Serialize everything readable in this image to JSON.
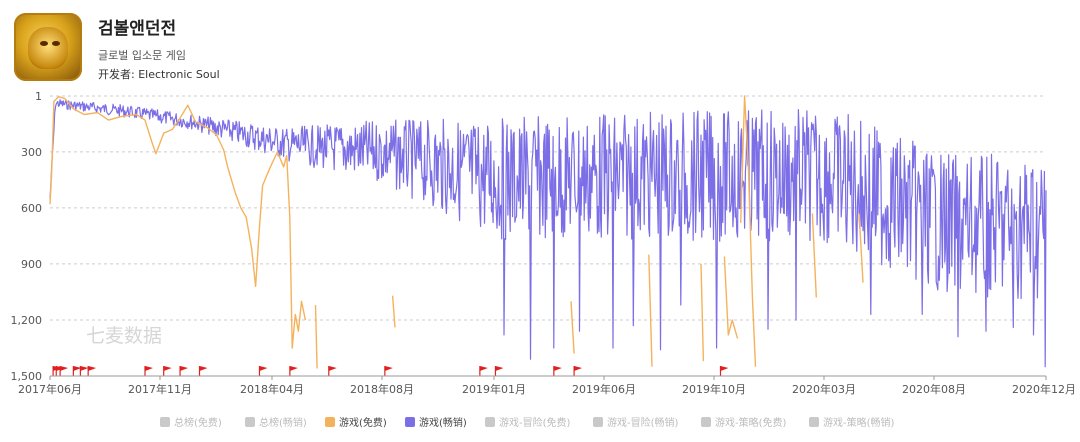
{
  "app": {
    "title": "검볼앤던전",
    "category": "글로벌 입소문 게임",
    "developer": "开发者: Electronic Soul",
    "icon": "dungeon-game-gold-icon"
  },
  "watermark": "七麦数据",
  "colors": {
    "free": "#f5b25c",
    "grossing": "#7b6ee6",
    "inactive": "#c9c9c9",
    "grid": "#cccccc",
    "axis_text": "#555555",
    "flag": "#e02020"
  },
  "legend": [
    {
      "label": "总榜(免费)",
      "active": false
    },
    {
      "label": "总榜(畅销)",
      "active": false
    },
    {
      "label": "游戏(免费)",
      "active": true,
      "color": "#f5b25c"
    },
    {
      "label": "游戏(畅销)",
      "active": true,
      "color": "#7b6ee6"
    },
    {
      "label": "游戏-冒险(免费)",
      "active": false
    },
    {
      "label": "游戏-冒险(畅销)",
      "active": false
    },
    {
      "label": "游戏-策略(免费)",
      "active": false
    },
    {
      "label": "游戏-策略(畅销)",
      "active": false
    }
  ],
  "chart_data": {
    "type": "line",
    "y_inverted": true,
    "ylim": [
      1,
      1500
    ],
    "y_ticks": [
      "1",
      "300",
      "600",
      "900",
      "1,200",
      "1,500"
    ],
    "y_tick_values": [
      1,
      300,
      600,
      900,
      1200,
      1500
    ],
    "x_ticks": [
      "2017年06月",
      "2017年11月",
      "2018年04月",
      "2018年08月",
      "2019年01月",
      "2019年06月",
      "2019年10月",
      "2020年03月",
      "2020年08月",
      "2020年12月"
    ],
    "x_range": [
      "2017-06-01",
      "2020-12-01"
    ],
    "grid": "horizontal-dashed",
    "legend_position": "bottom",
    "series": [
      {
        "name": "游戏(免费)",
        "color": "#f5b25c",
        "segments": [
          [
            [
              "2017-06-01",
              580
            ],
            [
              "2017-06-03",
              420
            ],
            [
              "2017-06-06",
              30
            ],
            [
              "2017-06-12",
              5
            ],
            [
              "2017-06-20",
              15
            ],
            [
              "2017-07-01",
              70
            ],
            [
              "2017-07-15",
              100
            ],
            [
              "2017-08-01",
              90
            ],
            [
              "2017-08-15",
              130
            ],
            [
              "2017-09-01",
              110
            ],
            [
              "2017-09-20",
              100
            ],
            [
              "2017-10-01",
              130
            ],
            [
              "2017-10-10",
              250
            ],
            [
              "2017-10-15",
              310
            ],
            [
              "2017-10-25",
              200
            ],
            [
              "2017-11-05",
              180
            ],
            [
              "2017-11-15",
              120
            ],
            [
              "2017-11-25",
              50
            ],
            [
              "2017-12-05",
              140
            ],
            [
              "2017-12-20",
              170
            ],
            [
              "2018-01-01",
              210
            ],
            [
              "2018-01-10",
              290
            ],
            [
              "2018-01-15",
              380
            ],
            [
              "2018-01-25",
              520
            ],
            [
              "2018-02-01",
              600
            ],
            [
              "2018-02-08",
              650
            ],
            [
              "2018-02-15",
              820
            ],
            [
              "2018-02-20",
              1020
            ],
            [
              "2018-02-25",
              700
            ],
            [
              "2018-03-01",
              480
            ],
            [
              "2018-03-10",
              390
            ],
            [
              "2018-03-20",
              300
            ],
            [
              "2018-03-28",
              380
            ],
            [
              "2018-04-01",
              320
            ],
            [
              "2018-04-05",
              650
            ],
            [
              "2018-04-08",
              1350
            ],
            [
              "2018-04-12",
              1170
            ],
            [
              "2018-04-16",
              1260
            ],
            [
              "2018-04-20",
              1100
            ],
            [
              "2018-04-25",
              1200
            ]
          ],
          [
            [
              "2018-05-08",
              1120
            ],
            [
              "2018-05-10",
              1460
            ]
          ],
          [
            [
              "2018-08-15",
              1070
            ],
            [
              "2018-08-18",
              1240
            ]
          ],
          [
            [
              "2019-04-01",
              1100
            ],
            [
              "2019-04-05",
              1380
            ]
          ],
          [
            [
              "2019-07-10",
              850
            ],
            [
              "2019-07-14",
              1450
            ]
          ],
          [
            [
              "2019-09-15",
              900
            ],
            [
              "2019-09-18",
              1420
            ]
          ],
          [
            [
              "2019-10-15",
              860
            ],
            [
              "2019-10-20",
              1280
            ],
            [
              "2019-10-25",
              1200
            ],
            [
              "2019-11-01",
              1300
            ]
          ],
          [
            [
              "2019-11-05",
              680
            ],
            [
              "2019-11-10",
              1
            ],
            [
              "2019-11-15",
              400
            ],
            [
              "2019-11-20",
              1080
            ],
            [
              "2019-11-24",
              1450
            ]
          ],
          [
            [
              "2020-02-05",
              630
            ],
            [
              "2020-02-10",
              1080
            ]
          ],
          [
            [
              "2020-04-05",
              630
            ],
            [
              "2020-04-10",
              1000
            ]
          ]
        ]
      },
      {
        "name": "游戏(畅销)",
        "color": "#7b6ee6",
        "range": [
          "2017-06-01",
          "2020-12-01"
        ],
        "baseline": [
          [
            "2017-06-01",
            550
          ],
          [
            "2017-06-08",
            40
          ],
          [
            "2017-09-01",
            80
          ],
          [
            "2017-12-01",
            140
          ],
          [
            "2018-04-01",
            260
          ],
          [
            "2018-08-01",
            300
          ],
          [
            "2019-01-01",
            450
          ],
          [
            "2019-06-01",
            430
          ],
          [
            "2019-10-01",
            430
          ],
          [
            "2020-03-01",
            430
          ],
          [
            "2020-08-01",
            700
          ],
          [
            "2020-12-01",
            700
          ]
        ],
        "noise_amplitude": [
          [
            "2017-06-01",
            25
          ],
          [
            "2017-12-01",
            40
          ],
          [
            "2018-04-01",
            90
          ],
          [
            "2018-08-01",
            170
          ],
          [
            "2019-01-01",
            330
          ],
          [
            "2020-08-01",
            380
          ],
          [
            "2020-12-01",
            400
          ]
        ],
        "dips": [
          [
            "2019-01-05",
            1280
          ],
          [
            "2019-02-08",
            1410
          ],
          [
            "2019-03-10",
            1350
          ],
          [
            "2019-04-12",
            1260
          ],
          [
            "2019-05-25",
            1350
          ],
          [
            "2019-06-20",
            1230
          ],
          [
            "2019-07-25",
            1360
          ],
          [
            "2019-08-20",
            1120
          ],
          [
            "2019-10-05",
            1350
          ],
          [
            "2019-12-10",
            1250
          ],
          [
            "2020-01-15",
            1200
          ],
          [
            "2020-04-20",
            1170
          ],
          [
            "2020-06-25",
            1170
          ],
          [
            "2020-08-10",
            1290
          ],
          [
            "2020-09-15",
            1260
          ],
          [
            "2020-10-20",
            1240
          ],
          [
            "2020-11-15",
            1280
          ],
          [
            "2020-11-30",
            1450
          ]
        ]
      }
    ],
    "event_flags": [
      "2017-06-05",
      "2017-06-09",
      "2017-06-14",
      "2017-07-01",
      "2017-07-10",
      "2017-07-20",
      "2017-10-01",
      "2017-10-25",
      "2017-11-15",
      "2017-12-10",
      "2018-02-25",
      "2018-04-05",
      "2018-05-25",
      "2018-08-05",
      "2018-12-05",
      "2018-12-25",
      "2019-03-10",
      "2019-04-05",
      "2019-10-10"
    ]
  }
}
